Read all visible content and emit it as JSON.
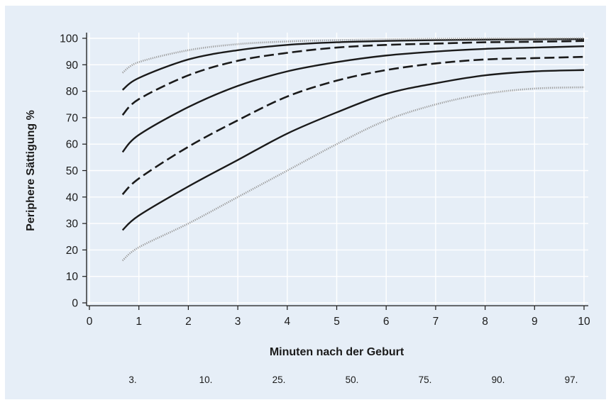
{
  "chart_data": {
    "type": "line",
    "xlabel": "Minuten nach der Geburt",
    "ylabel": "Periphere Sättigung %",
    "xlim": [
      0,
      10
    ],
    "ylim": [
      0,
      100
    ],
    "x_ticks": [
      0,
      1,
      2,
      3,
      4,
      5,
      6,
      7,
      8,
      9,
      10
    ],
    "y_ticks": [
      0,
      10,
      20,
      30,
      40,
      50,
      60,
      70,
      80,
      90,
      100
    ],
    "grid": true,
    "percentile_labels": [
      "3.",
      "10.",
      "25.",
      "50.",
      "75.",
      "90.",
      "97."
    ],
    "x": [
      0.67,
      1,
      2,
      3,
      4,
      5,
      6,
      7,
      8,
      9,
      10
    ],
    "series": [
      {
        "values": [
          16,
          21,
          30,
          40,
          50,
          60,
          69,
          75,
          79,
          81,
          81.5
        ],
        "style": "dotted",
        "color": "#9a9a9a"
      },
      {
        "values": [
          27.5,
          33,
          44,
          54,
          64,
          72,
          79,
          83,
          86,
          87.5,
          88
        ],
        "style": "solid",
        "color": "#1a1a1a"
      },
      {
        "values": [
          41,
          47,
          59,
          69,
          78,
          84,
          88,
          90.5,
          92,
          92.5,
          93
        ],
        "style": "dashed",
        "color": "#1a1a1a"
      },
      {
        "values": [
          57,
          63.5,
          74,
          82,
          87.5,
          91,
          93.5,
          95,
          96,
          96.5,
          97
        ],
        "style": "solid",
        "color": "#1a1a1a"
      },
      {
        "values": [
          71,
          77,
          86,
          91.5,
          94.5,
          96.5,
          97.5,
          98,
          98.5,
          98.7,
          99
        ],
        "style": "dashed",
        "color": "#1a1a1a"
      },
      {
        "values": [
          80.5,
          85,
          92,
          95.5,
          97.5,
          98.5,
          99,
          99.3,
          99.5,
          99.6,
          99.7
        ],
        "style": "solid",
        "color": "#1a1a1a"
      },
      {
        "values": [
          87,
          91,
          95.5,
          97.8,
          98.8,
          99.3,
          99.6,
          99.8,
          99.9,
          99.9,
          100
        ],
        "style": "dotted",
        "color": "#9a9a9a"
      }
    ]
  }
}
